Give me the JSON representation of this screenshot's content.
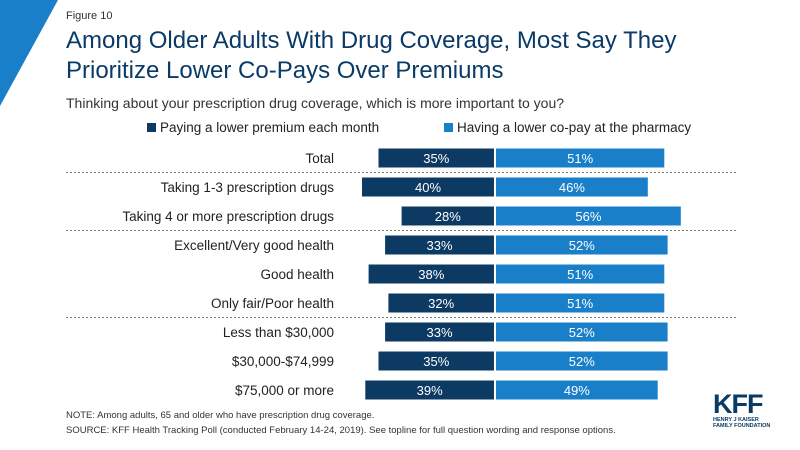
{
  "figure_label": "Figure 10",
  "colors": {
    "premium": "#0d3a63",
    "copay": "#1a7fc9",
    "accent": "#1a7fc9",
    "divider": "#7a7a7a"
  },
  "chart_data": {
    "type": "bar",
    "orientation": "horizontal-diverging",
    "title": "Among Older Adults With Drug Coverage, Most Say They Prioritize Lower Co-Pays Over Premiums",
    "subtitle": "Thinking about your prescription drug coverage, which is more important to you?",
    "legend_placement": "top",
    "categories": [
      "Total",
      "Taking 1-3 prescription drugs",
      "Taking 4 or more prescription drugs",
      "Excellent/Very good health",
      "Good health",
      "Only fair/Poor health",
      "Less than $30,000",
      "$30,000-$74,999",
      "$75,000 or more"
    ],
    "group_dividers_after": [
      0,
      2,
      5
    ],
    "series": [
      {
        "name": "Paying a lower premium each month",
        "values": [
          35,
          40,
          28,
          33,
          38,
          32,
          33,
          35,
          39
        ],
        "labels": [
          "35%",
          "40%",
          "28%",
          "33%",
          "38%",
          "32%",
          "33%",
          "35%",
          "39%"
        ]
      },
      {
        "name": "Having a lower co-pay at the pharmacy",
        "values": [
          51,
          46,
          56,
          52,
          51,
          51,
          52,
          52,
          49
        ],
        "labels": [
          "51%",
          "46%",
          "56%",
          "52%",
          "51%",
          "51%",
          "52%",
          "52%",
          "49%"
        ]
      }
    ]
  },
  "note": "NOTE: Among adults, 65 and older who have prescription drug coverage.",
  "source": "SOURCE: KFF Health Tracking Poll (conducted February 14-24, 2019). See topline for full question wording and response options.",
  "logo": {
    "mark": "KFF",
    "line1": "HENRY J KAISER",
    "line2": "FAMILY FOUNDATION"
  }
}
